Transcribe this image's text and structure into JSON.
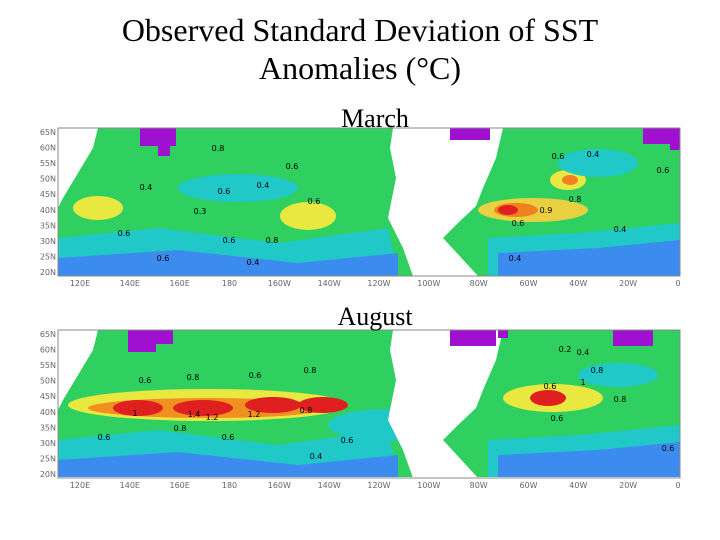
{
  "title_lines": [
    "Observed Standard Deviation of SST",
    "Anomalies (°C)"
  ],
  "maps": [
    {
      "label": "March",
      "lat_labels": [
        "65N",
        "60N",
        "55N",
        "50N",
        "45N",
        "40N",
        "35N",
        "30N",
        "25N",
        "20N"
      ],
      "lon_labels": [
        "120E",
        "140E",
        "160E",
        "180",
        "160W",
        "140W",
        "120W",
        "100W",
        "80W",
        "60W",
        "40W",
        "20W",
        "0"
      ],
      "contour_labels": [
        "0.8",
        "0.6",
        "0.4",
        "0.6",
        "0.4",
        "0.3",
        "0.6",
        "0.6",
        "0.8",
        "0.6",
        "0.4",
        "0.6",
        "0.6",
        "0.4",
        "0.8",
        "0.9",
        "0.6",
        "0.4",
        "0.4",
        "0.6"
      ]
    },
    {
      "label": "August",
      "lat_labels": [
        "65N",
        "60N",
        "55N",
        "50N",
        "45N",
        "40N",
        "35N",
        "30N",
        "25N",
        "20N"
      ],
      "lon_labels": [
        "120E",
        "140E",
        "160E",
        "180",
        "160W",
        "140W",
        "120W",
        "100W",
        "80W",
        "60W",
        "40W",
        "20W",
        "0"
      ],
      "contour_labels": [
        "0.6",
        "0.8",
        "0.6",
        "0.8",
        "1",
        "1.4",
        "1.2",
        "1.2",
        "0.8",
        "0.8",
        "0.6",
        "0.6",
        "0.6",
        "0.4",
        "0.2",
        "0.4",
        "1",
        "0.8",
        "0.6",
        "0.8",
        "0.6",
        "0.6"
      ]
    }
  ]
}
